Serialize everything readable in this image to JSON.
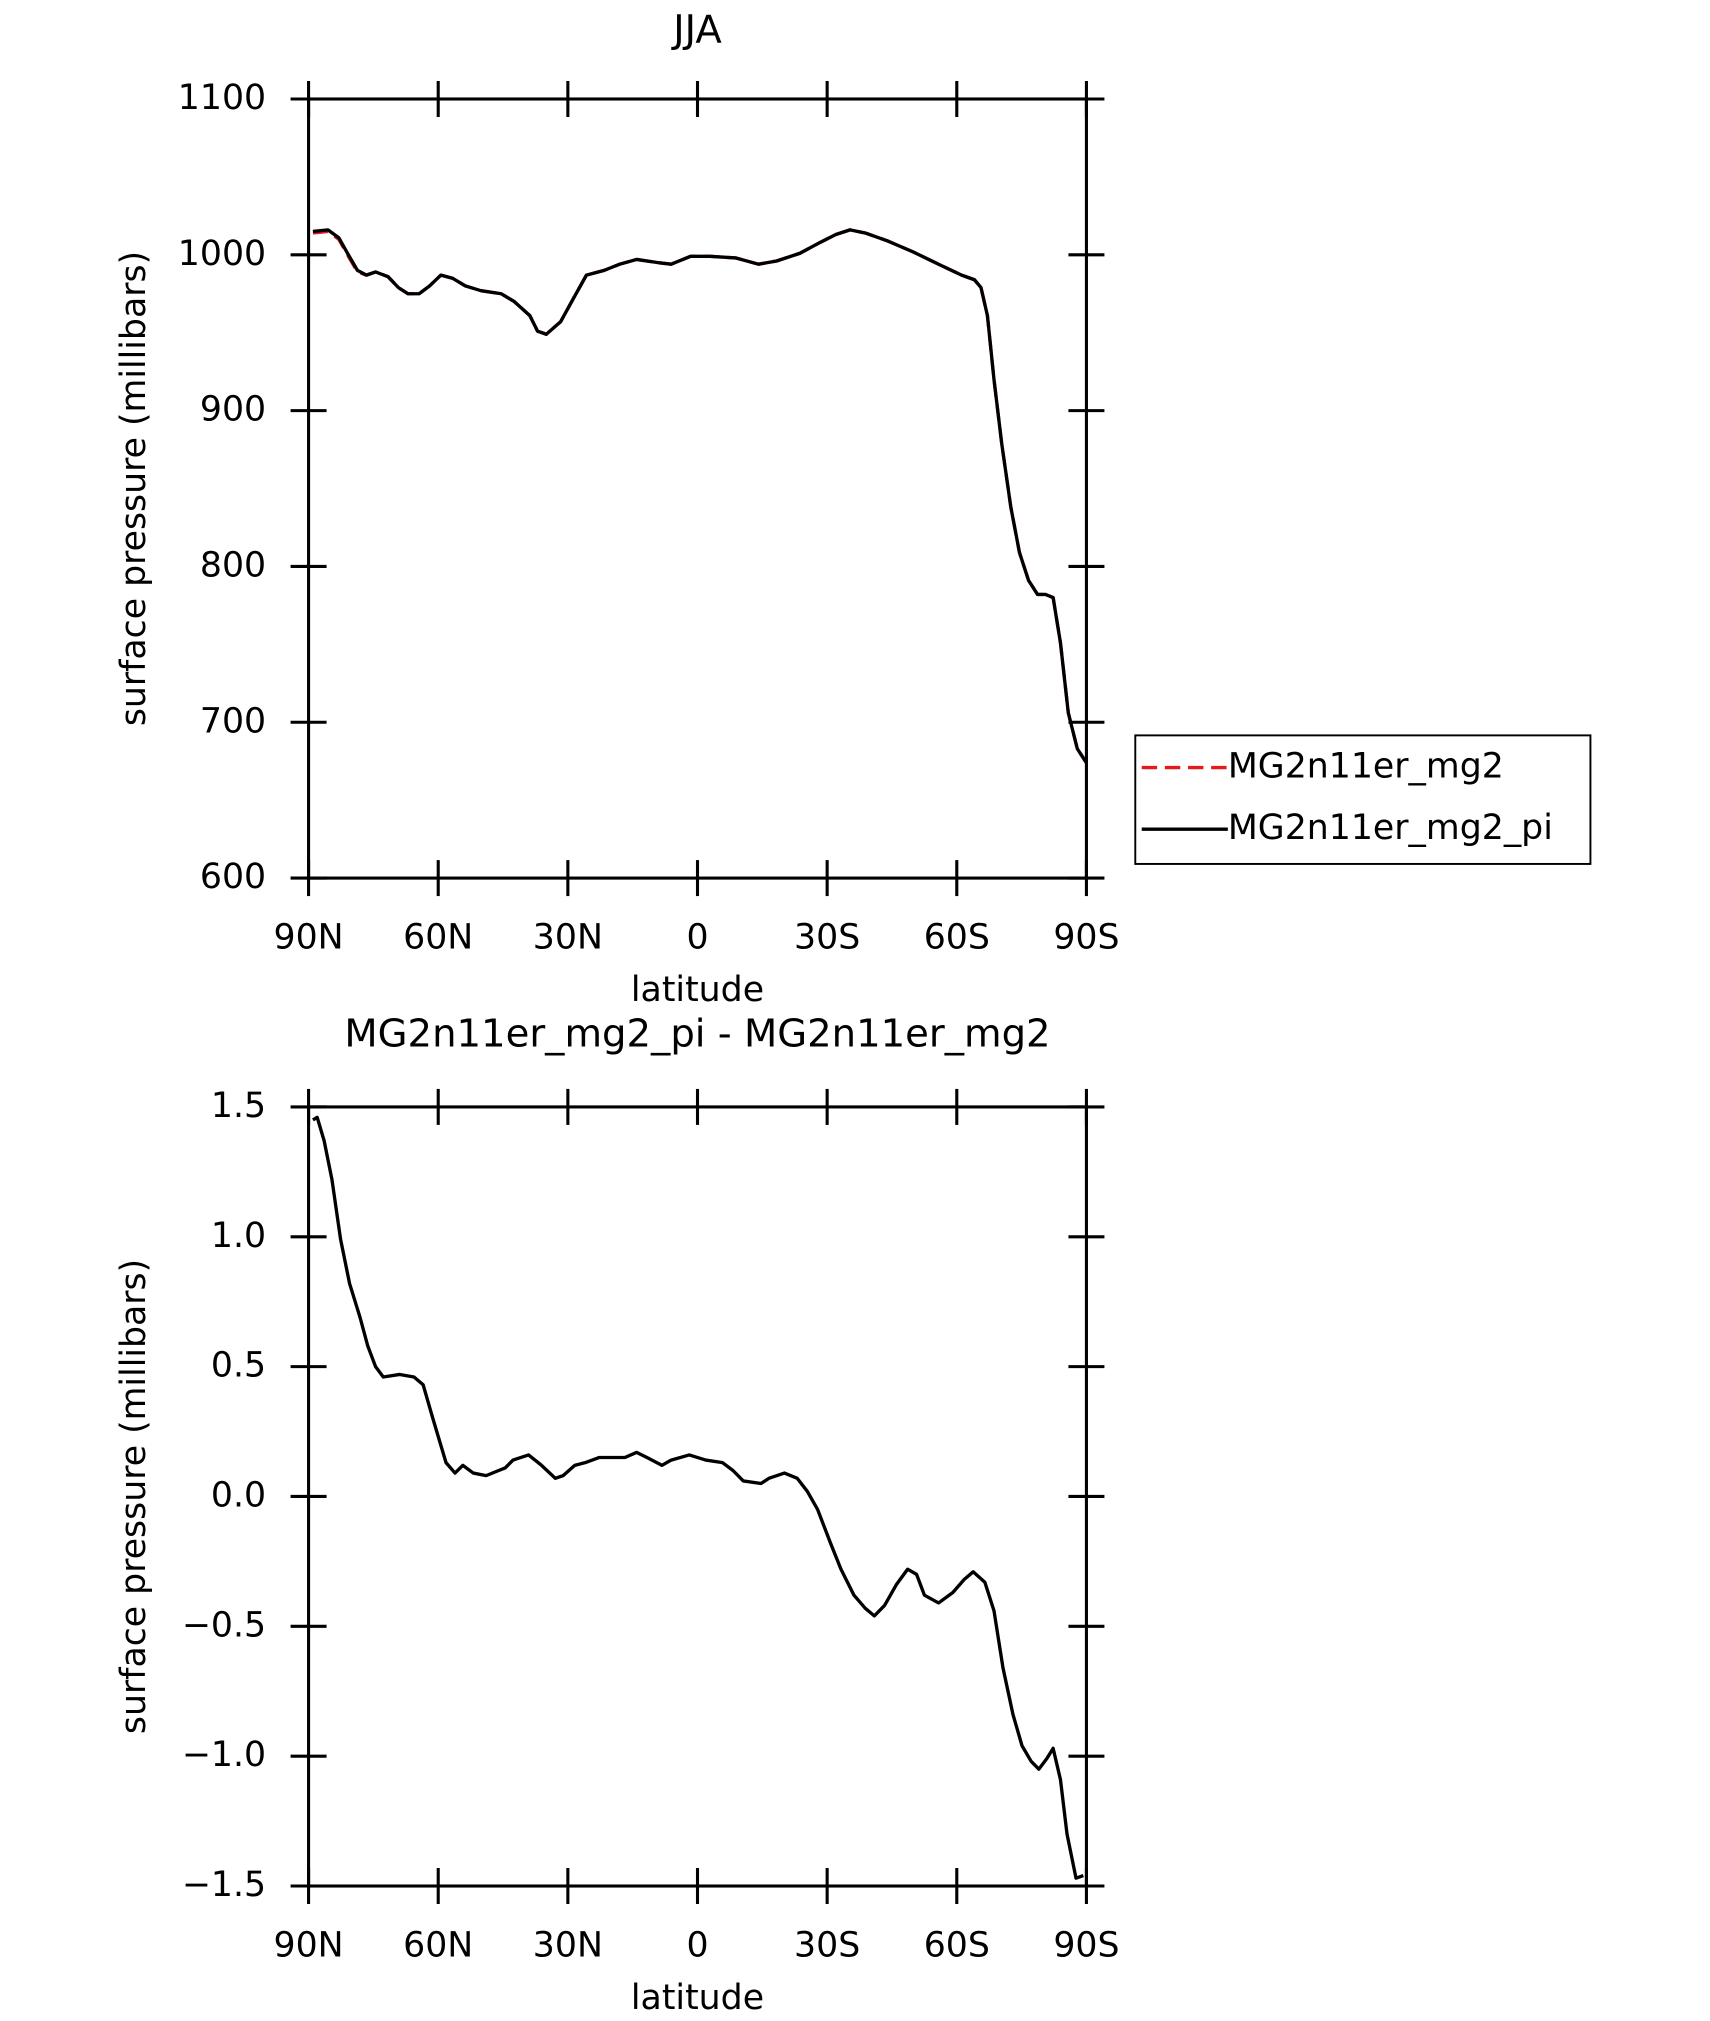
{
  "chart_data": [
    {
      "type": "line",
      "title": "JJA",
      "xlabel": "latitude",
      "ylabel": "surface pressure (millibars)",
      "x": [
        89,
        85.5,
        83,
        81,
        78.7,
        76.6,
        74.5,
        71.6,
        69.2,
        67,
        64.4,
        62,
        59.4,
        56.7,
        53.7,
        50.1,
        45.4,
        42.4,
        38.8,
        37,
        35,
        31.7,
        28.7,
        25.7,
        21.6,
        18,
        14.1,
        9.1,
        6.1,
        1.6,
        -2.9,
        -8.8,
        -14.1,
        -18.3,
        -23.7,
        -28.4,
        -32,
        -35.3,
        -38.8,
        -43.9,
        -49.8,
        -55.8,
        -61.1,
        -64.1,
        -65.6,
        -67.1,
        -68.6,
        -70.4,
        -72.5,
        -74.5,
        -76.6,
        -78.7,
        -80.5,
        -82.3,
        -84,
        -85.8,
        -87.9,
        -90
      ],
      "series": [
        {
          "name": "MG2n11er_mg2",
          "color": "#e41a1c",
          "line_style": "dashed",
          "values": [
            1014,
            1015,
            1010,
            1000,
            989,
            987,
            989,
            986,
            979,
            975,
            975,
            980,
            987,
            985,
            980,
            977,
            975,
            970,
            961,
            951,
            949,
            957,
            972,
            987,
            990,
            994,
            997,
            995,
            994,
            999,
            999,
            998,
            994,
            996,
            1001,
            1008,
            1013,
            1016,
            1014,
            1009,
            1002,
            994,
            987,
            984,
            979,
            961,
            920,
            879,
            838,
            809,
            791,
            782,
            782,
            780,
            751,
            706,
            683,
            674
          ]
        },
        {
          "name": "MG2n11er_mg2_pi",
          "color": "#000000",
          "line_style": "solid",
          "values": [
            1015,
            1016,
            1011,
            1001,
            990,
            987,
            989,
            986,
            979,
            975,
            975,
            980,
            987,
            985,
            980,
            977,
            975,
            970,
            961,
            951,
            949,
            957,
            972,
            987,
            990,
            994,
            997,
            995,
            994,
            999,
            999,
            998,
            994,
            996,
            1001,
            1008,
            1013,
            1016,
            1014,
            1009,
            1002,
            994,
            987,
            984,
            979,
            961,
            920,
            879,
            838,
            809,
            791,
            782,
            782,
            780,
            751,
            706,
            683,
            674
          ]
        }
      ],
      "xlim": [
        90,
        -90
      ],
      "xticks": [
        {
          "value": 90,
          "label": "90N"
        },
        {
          "value": 60,
          "label": "60N"
        },
        {
          "value": 30,
          "label": "30N"
        },
        0,
        {
          "value": -30,
          "label": "30S"
        },
        {
          "value": -60,
          "label": "60S"
        },
        {
          "value": -90,
          "label": "90S"
        }
      ],
      "ylim": [
        600,
        1100
      ],
      "yticks": [
        600,
        700,
        800,
        900,
        1000,
        1100
      ],
      "legend": "right"
    },
    {
      "type": "line",
      "title": "MG2n11er_mg2_pi - MG2n11er_mg2",
      "xlabel": "latitude",
      "ylabel": "surface pressure (millibars)",
      "x": [
        89,
        88,
        86.4,
        84.6,
        82.6,
        80.5,
        78.1,
        76.3,
        74.5,
        72.7,
        68.9,
        65.6,
        63.5,
        61.4,
        58.2,
        56.1,
        54.3,
        51.9,
        48.9,
        46,
        44.5,
        42.7,
        39.1,
        36.1,
        32.9,
        31.1,
        28.4,
        26,
        22.8,
        19.8,
        16.8,
        14.1,
        11.7,
        8.2,
        6.1,
        1.9,
        -1.9,
        -5.8,
        -8.2,
        -10.6,
        -14.7,
        -16.5,
        -20.1,
        -23.1,
        -25.4,
        -27.8,
        -30.8,
        -33.2,
        -36.2,
        -38.8,
        -40.9,
        -43.3,
        -46,
        -48.6,
        -50.7,
        -52.5,
        -55.8,
        -59.1,
        -61.7,
        -63.8,
        -66.5,
        -68.6,
        -70.7,
        -73,
        -75.1,
        -77.2,
        -79,
        -80.8,
        -82.3,
        -84,
        -85.5,
        -87.6,
        -89.3
      ],
      "series": [
        {
          "name": "MG2n11er_mg2_pi - MG2n11er_mg2",
          "color": "#000000",
          "line_style": "solid",
          "values": [
            1.45,
            1.46,
            1.37,
            1.22,
            0.99,
            0.82,
            0.69,
            0.58,
            0.5,
            0.46,
            0.47,
            0.46,
            0.43,
            0.31,
            0.13,
            0.09,
            0.12,
            0.09,
            0.08,
            0.1,
            0.11,
            0.14,
            0.16,
            0.12,
            0.07,
            0.08,
            0.12,
            0.13,
            0.15,
            0.15,
            0.15,
            0.17,
            0.15,
            0.12,
            0.14,
            0.16,
            0.14,
            0.13,
            0.1,
            0.06,
            0.05,
            0.07,
            0.09,
            0.07,
            0.02,
            -0.05,
            -0.18,
            -0.28,
            -0.38,
            -0.43,
            -0.46,
            -0.42,
            -0.34,
            -0.28,
            -0.3,
            -0.38,
            -0.41,
            -0.37,
            -0.32,
            -0.29,
            -0.33,
            -0.44,
            -0.66,
            -0.84,
            -0.96,
            -1.02,
            -1.05,
            -1.01,
            -0.97,
            -1.09,
            -1.3,
            -1.47,
            -1.46
          ]
        }
      ],
      "xlim": [
        90,
        -90
      ],
      "xticks": [
        {
          "value": 90,
          "label": "90N"
        },
        {
          "value": 60,
          "label": "60N"
        },
        {
          "value": 30,
          "label": "30N"
        },
        0,
        {
          "value": -30,
          "label": "30S"
        },
        {
          "value": -60,
          "label": "60S"
        },
        {
          "value": -90,
          "label": "90S"
        }
      ],
      "ylim": [
        -1.5,
        1.5
      ],
      "yticks": [
        {
          "value": -1.5,
          "label": "−1.5"
        },
        {
          "value": -1,
          "label": "−1.0"
        },
        {
          "value": -0.5,
          "label": "−0.5"
        },
        {
          "value": 0,
          "label": "0.0"
        },
        0.5,
        {
          "value": 1,
          "label": "1.0"
        },
        1.5
      ]
    }
  ]
}
